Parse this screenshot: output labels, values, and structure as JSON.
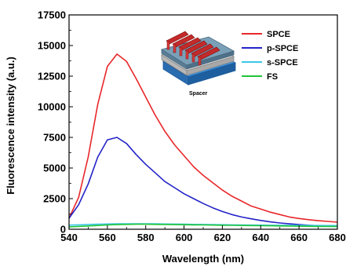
{
  "chart_data": {
    "type": "line",
    "title": "",
    "xlabel": "Wavelength (nm)",
    "ylabel": "Fluorescence intensity (a.u.)",
    "xlim": [
      540,
      680
    ],
    "ylim": [
      0,
      17500
    ],
    "xticks": [
      540,
      560,
      580,
      600,
      620,
      640,
      660,
      680
    ],
    "yticks": [
      0,
      2500,
      5000,
      7500,
      10000,
      12500,
      15000,
      17500
    ],
    "grid": false,
    "legend_position": "top-right",
    "x": [
      540,
      545,
      550,
      555,
      560,
      565,
      570,
      575,
      580,
      585,
      590,
      595,
      600,
      605,
      610,
      615,
      620,
      625,
      630,
      635,
      640,
      645,
      650,
      655,
      660,
      665,
      670,
      675,
      680
    ],
    "series": [
      {
        "name": "SPCE",
        "color": "#e8272a",
        "values": [
          900,
          2600,
          5900,
          10200,
          13300,
          14300,
          13700,
          12300,
          10800,
          9300,
          8000,
          6900,
          6000,
          5100,
          4400,
          3800,
          3200,
          2700,
          2300,
          1900,
          1650,
          1400,
          1200,
          1000,
          880,
          780,
          700,
          640,
          580
        ]
      },
      {
        "name": "p-SPCE",
        "color": "#2323c8",
        "values": [
          900,
          2000,
          3700,
          5900,
          7300,
          7500,
          7000,
          6100,
          5300,
          4600,
          3900,
          3400,
          2900,
          2500,
          2100,
          1750,
          1450,
          1200,
          1000,
          850,
          720,
          600,
          510,
          440,
          380,
          330,
          290,
          260,
          240
        ]
      },
      {
        "name": "s-SPCE",
        "color": "#3dc8e8",
        "values": [
          340,
          360,
          390,
          410,
          430,
          440,
          450,
          450,
          440,
          440,
          430,
          420,
          410,
          400,
          390,
          380,
          370,
          360,
          350,
          340,
          340,
          330,
          330,
          320,
          320,
          310,
          310,
          300,
          300
        ]
      },
      {
        "name": "FS",
        "color": "#22c43a",
        "values": [
          200,
          230,
          270,
          310,
          350,
          380,
          400,
          410,
          410,
          400,
          390,
          380,
          370,
          360,
          350,
          340,
          330,
          320,
          310,
          300,
          290,
          280,
          270,
          260,
          250,
          240,
          230,
          230,
          220
        ]
      }
    ],
    "inset": {
      "label": "Spacer",
      "icon": "spacer-device-icon"
    }
  }
}
